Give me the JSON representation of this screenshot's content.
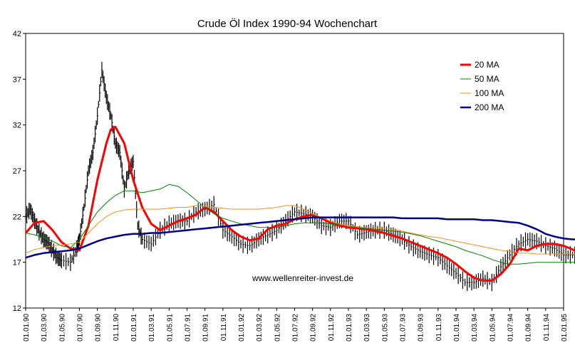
{
  "chart_data": {
    "type": "line",
    "title": "Crude Öl Index 1990-94 Wochenchart",
    "watermark": "www.wellenreiter-invest.de",
    "xlabel": "",
    "ylabel": "",
    "ylim": [
      12,
      42
    ],
    "y_ticks": [
      12,
      17,
      22,
      27,
      32,
      37,
      42
    ],
    "grid": false,
    "legend_position": "top-right",
    "x_tick_labels": [
      "01.01.90",
      "01.03.90",
      "01.05.90",
      "01.07.90",
      "01.09.90",
      "01.11.90",
      "01.01.91",
      "01.03.91",
      "01.05.91",
      "01.07.91",
      "01.09.91",
      "01.11.91",
      "01.01.92",
      "01.03.92",
      "01.05.92",
      "01.07.92",
      "01.09.92",
      "01.11.92",
      "01.01.93",
      "01.03.93",
      "01.05.93",
      "01.07.93",
      "01.09.93",
      "01.11.93",
      "01.01.94",
      "01.03.94",
      "01.05.94",
      "01.07.94",
      "01.09.94",
      "01.11.94",
      "01.01.95"
    ],
    "price_bars": {
      "color": "#000000",
      "points": [
        [
          0,
          22
        ],
        [
          0.5,
          22.8
        ],
        [
          1,
          21.5
        ],
        [
          1.5,
          20.3
        ],
        [
          2,
          19.5
        ],
        [
          2.5,
          19.1
        ],
        [
          3,
          18.3
        ],
        [
          3.5,
          17.5
        ],
        [
          4,
          17.2
        ],
        [
          5,
          17.0
        ],
        [
          5.7,
          18.5
        ],
        [
          6,
          19.5
        ],
        [
          6.5,
          23
        ],
        [
          7,
          27
        ],
        [
          7.5,
          29
        ],
        [
          8,
          33
        ],
        [
          8.5,
          38
        ],
        [
          9,
          35
        ],
        [
          9.5,
          33
        ],
        [
          10,
          30
        ],
        [
          10.5,
          29
        ],
        [
          11,
          25
        ],
        [
          11.5,
          27
        ],
        [
          12,
          28
        ],
        [
          12.5,
          21
        ],
        [
          13,
          19.5
        ],
        [
          14,
          19
        ],
        [
          15,
          20.5
        ],
        [
          16,
          21.2
        ],
        [
          17,
          21.5
        ],
        [
          18,
          21.5
        ],
        [
          19,
          22.5
        ],
        [
          20,
          22.8
        ],
        [
          21,
          23.3
        ],
        [
          22,
          20.5
        ],
        [
          23,
          19.8
        ],
        [
          24,
          19
        ],
        [
          25,
          18.8
        ],
        [
          26,
          19.5
        ],
        [
          27,
          20
        ],
        [
          28,
          20.5
        ],
        [
          29,
          21.5
        ],
        [
          30,
          22.5
        ],
        [
          31,
          22.3
        ],
        [
          32,
          22
        ],
        [
          33,
          21
        ],
        [
          34,
          20.8
        ],
        [
          35,
          21.5
        ],
        [
          36,
          21.5
        ],
        [
          37,
          20
        ],
        [
          38,
          20.3
        ],
        [
          39,
          20.5
        ],
        [
          40,
          20.5
        ],
        [
          41,
          20
        ],
        [
          42,
          19.5
        ],
        [
          43,
          18.7
        ],
        [
          44,
          18.2
        ],
        [
          45,
          17.8
        ],
        [
          46,
          17.5
        ],
        [
          47,
          16.6
        ],
        [
          48,
          15.8
        ],
        [
          49,
          14.8
        ],
        [
          50,
          14.8
        ],
        [
          51,
          15.2
        ],
        [
          52,
          14.8
        ],
        [
          53,
          16.5
        ],
        [
          54,
          17.8
        ],
        [
          55,
          19
        ],
        [
          56,
          19.5
        ],
        [
          57,
          19.3
        ],
        [
          58,
          18.8
        ],
        [
          59,
          18.5
        ],
        [
          60,
          17.8
        ],
        [
          61,
          17.8
        ],
        [
          62,
          17.7
        ]
      ]
    },
    "series": [
      {
        "name": "20 MA",
        "color": "#ff0000",
        "points": [
          [
            0,
            20.2
          ],
          [
            1,
            21.3
          ],
          [
            2,
            21.5
          ],
          [
            3,
            20.5
          ],
          [
            4,
            19.2
          ],
          [
            5,
            18.5
          ],
          [
            6,
            18.3
          ],
          [
            7,
            21
          ],
          [
            8,
            26
          ],
          [
            9,
            30
          ],
          [
            9.5,
            31.5
          ],
          [
            10,
            31.8
          ],
          [
            11,
            30
          ],
          [
            12,
            26
          ],
          [
            13,
            23
          ],
          [
            14,
            21.2
          ],
          [
            15,
            20.5
          ],
          [
            16,
            21
          ],
          [
            17,
            21.5
          ],
          [
            18,
            21.8
          ],
          [
            19,
            22.2
          ],
          [
            20,
            23
          ],
          [
            21,
            22.5
          ],
          [
            22,
            21.5
          ],
          [
            23,
            20.5
          ],
          [
            24,
            19.8
          ],
          [
            25,
            19.4
          ],
          [
            26,
            19.6
          ],
          [
            27,
            20.6
          ],
          [
            28,
            21
          ],
          [
            29,
            21.2
          ],
          [
            30,
            21.7
          ],
          [
            31,
            22
          ],
          [
            32,
            22.2
          ],
          [
            33,
            21.8
          ],
          [
            34,
            21.3
          ],
          [
            35,
            21
          ],
          [
            36,
            20.8
          ],
          [
            37,
            20.7
          ],
          [
            38,
            20.6
          ],
          [
            39,
            20.4
          ],
          [
            40,
            20.2
          ],
          [
            41,
            19.9
          ],
          [
            42,
            19.6
          ],
          [
            43,
            19.2
          ],
          [
            44,
            18.8
          ],
          [
            45,
            18.4
          ],
          [
            46,
            18
          ],
          [
            47,
            17.5
          ],
          [
            48,
            16.8
          ],
          [
            49,
            16
          ],
          [
            50,
            15.3
          ],
          [
            51,
            15
          ],
          [
            52,
            15
          ],
          [
            53,
            15.7
          ],
          [
            54,
            16.8
          ],
          [
            55,
            18.5
          ],
          [
            56,
            18.3
          ],
          [
            57,
            18.8
          ],
          [
            58,
            19
          ],
          [
            59,
            19
          ],
          [
            60,
            18.8
          ],
          [
            61,
            18.4
          ],
          [
            62,
            18
          ]
        ]
      },
      {
        "name": "50 MA",
        "color": "#008000",
        "points": [
          [
            0,
            20.2
          ],
          [
            1,
            20
          ],
          [
            2,
            19.7
          ],
          [
            3,
            19.3
          ],
          [
            4,
            18.8
          ],
          [
            5,
            18.6
          ],
          [
            6,
            19.5
          ],
          [
            7,
            21
          ],
          [
            8,
            22.5
          ],
          [
            9,
            23.5
          ],
          [
            10,
            24.3
          ],
          [
            11,
            24.8
          ],
          [
            12,
            24.8
          ],
          [
            13,
            24.6
          ],
          [
            14,
            24.8
          ],
          [
            15,
            25
          ],
          [
            16,
            25.5
          ],
          [
            17,
            25.3
          ],
          [
            18,
            24.6
          ],
          [
            19,
            23.8
          ],
          [
            20,
            23
          ],
          [
            21,
            22.3
          ],
          [
            22,
            21.8
          ],
          [
            23,
            21.5
          ],
          [
            24,
            21.2
          ],
          [
            25,
            21
          ],
          [
            26,
            20.8
          ],
          [
            27,
            20.8
          ],
          [
            28,
            20.8
          ],
          [
            29,
            21
          ],
          [
            30,
            21.2
          ],
          [
            31,
            21.3
          ],
          [
            32,
            21.3
          ],
          [
            33,
            21.3
          ],
          [
            34,
            21.2
          ],
          [
            35,
            21.2
          ],
          [
            36,
            21
          ],
          [
            37,
            20.8
          ],
          [
            38,
            20.7
          ],
          [
            39,
            20.6
          ],
          [
            40,
            20.5
          ],
          [
            41,
            20.4
          ],
          [
            42,
            20.3
          ],
          [
            43,
            20.1
          ],
          [
            44,
            19.9
          ],
          [
            45,
            19.6
          ],
          [
            46,
            19.3
          ],
          [
            47,
            19
          ],
          [
            48,
            18.7
          ],
          [
            49,
            18.3
          ],
          [
            50,
            18
          ],
          [
            51,
            17.7
          ],
          [
            52,
            17.3
          ],
          [
            53,
            17
          ],
          [
            54,
            16.8
          ],
          [
            55,
            16.8
          ],
          [
            56,
            16.9
          ],
          [
            57,
            17
          ],
          [
            58,
            17
          ],
          [
            59,
            17
          ],
          [
            60,
            17
          ],
          [
            61,
            17
          ],
          [
            62,
            17
          ]
        ]
      },
      {
        "name": "100 MA",
        "color": "#ff8c1a",
        "points": [
          [
            0,
            18
          ],
          [
            1,
            18.4
          ],
          [
            2,
            18.6
          ],
          [
            3,
            18.8
          ],
          [
            4,
            18.9
          ],
          [
            5,
            19
          ],
          [
            6,
            19.2
          ],
          [
            7,
            20.2
          ],
          [
            8,
            21.2
          ],
          [
            9,
            22
          ],
          [
            10,
            22.5
          ],
          [
            11,
            22.7
          ],
          [
            12,
            22.8
          ],
          [
            13,
            22.8
          ],
          [
            14,
            22.8
          ],
          [
            15,
            22.8
          ],
          [
            16,
            22.9
          ],
          [
            17,
            23
          ],
          [
            18,
            23
          ],
          [
            19,
            23.2
          ],
          [
            20,
            23.1
          ],
          [
            21,
            23
          ],
          [
            22,
            22.9
          ],
          [
            23,
            22.8
          ],
          [
            24,
            22.8
          ],
          [
            25,
            22.8
          ],
          [
            26,
            22.8
          ],
          [
            27,
            22.9
          ],
          [
            28,
            23
          ],
          [
            29,
            23.2
          ],
          [
            30,
            23.2
          ],
          [
            31,
            22.8
          ],
          [
            32,
            22.3
          ],
          [
            33,
            21.9
          ],
          [
            34,
            21.5
          ],
          [
            35,
            21.2
          ],
          [
            36,
            21
          ],
          [
            37,
            20.9
          ],
          [
            38,
            20.8
          ],
          [
            39,
            20.8
          ],
          [
            40,
            20.7
          ],
          [
            41,
            20.6
          ],
          [
            42,
            20.4
          ],
          [
            43,
            20.2
          ],
          [
            44,
            20
          ],
          [
            45,
            19.8
          ],
          [
            46,
            19.7
          ],
          [
            47,
            19.5
          ],
          [
            48,
            19.3
          ],
          [
            49,
            19.1
          ],
          [
            50,
            18.9
          ],
          [
            51,
            18.7
          ],
          [
            52,
            18.5
          ],
          [
            53,
            18.3
          ],
          [
            54,
            18.2
          ],
          [
            55,
            18
          ],
          [
            56,
            18
          ],
          [
            57,
            17.9
          ],
          [
            58,
            17.9
          ],
          [
            59,
            17.9
          ],
          [
            60,
            17.9
          ],
          [
            61,
            17.9
          ],
          [
            62,
            17.9
          ]
        ]
      },
      {
        "name": "200 MA",
        "color": "#00008b",
        "points": [
          [
            0,
            17.5
          ],
          [
            1,
            17.8
          ],
          [
            2,
            18
          ],
          [
            3,
            18.1
          ],
          [
            4,
            18.2
          ],
          [
            5,
            18.3
          ],
          [
            6,
            18.5
          ],
          [
            7,
            18.9
          ],
          [
            8,
            19.3
          ],
          [
            9,
            19.6
          ],
          [
            10,
            19.8
          ],
          [
            11,
            20
          ],
          [
            12,
            20.1
          ],
          [
            13,
            20.1
          ],
          [
            14,
            20.2
          ],
          [
            15,
            20.2
          ],
          [
            16,
            20.3
          ],
          [
            17,
            20.4
          ],
          [
            18,
            20.5
          ],
          [
            19,
            20.6
          ],
          [
            20,
            20.7
          ],
          [
            21,
            20.8
          ],
          [
            22,
            20.9
          ],
          [
            23,
            21
          ],
          [
            24,
            21.1
          ],
          [
            25,
            21.2
          ],
          [
            26,
            21.3
          ],
          [
            27,
            21.4
          ],
          [
            28,
            21.5
          ],
          [
            29,
            21.6
          ],
          [
            30,
            21.7
          ],
          [
            31,
            21.8
          ],
          [
            32,
            21.9
          ],
          [
            33,
            21.9
          ],
          [
            34,
            21.9
          ],
          [
            35,
            21.9
          ],
          [
            36,
            21.9
          ],
          [
            37,
            21.9
          ],
          [
            38,
            21.9
          ],
          [
            39,
            21.9
          ],
          [
            40,
            21.9
          ],
          [
            41,
            21.9
          ],
          [
            42,
            21.8
          ],
          [
            43,
            21.8
          ],
          [
            44,
            21.8
          ],
          [
            45,
            21.8
          ],
          [
            46,
            21.8
          ],
          [
            47,
            21.7
          ],
          [
            48,
            21.7
          ],
          [
            49,
            21.7
          ],
          [
            50,
            21.7
          ],
          [
            51,
            21.6
          ],
          [
            52,
            21.6
          ],
          [
            53,
            21.5
          ],
          [
            54,
            21.4
          ],
          [
            55,
            21.3
          ],
          [
            56,
            21
          ],
          [
            57,
            20.6
          ],
          [
            58,
            20.1
          ],
          [
            59,
            19.8
          ],
          [
            60,
            19.6
          ],
          [
            61,
            19.5
          ],
          [
            62,
            19.5
          ]
        ]
      }
    ]
  }
}
